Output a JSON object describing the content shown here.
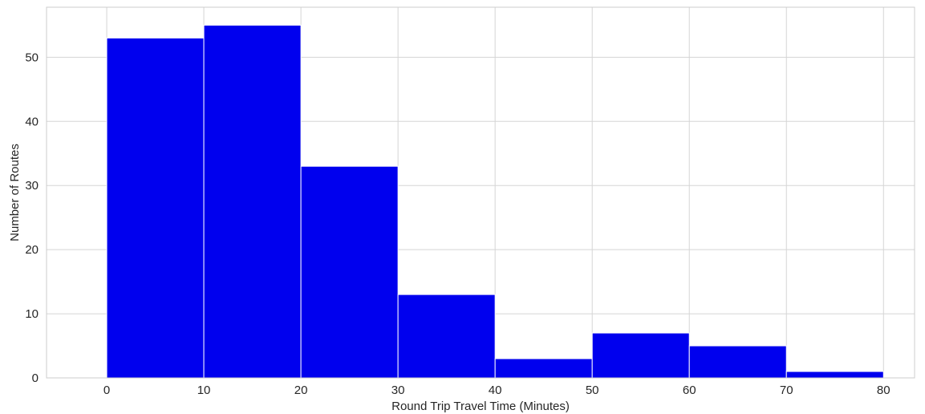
{
  "chart_data": {
    "type": "bar",
    "subtype": "histogram",
    "bin_edges": [
      0,
      10,
      20,
      30,
      40,
      50,
      60,
      70,
      80
    ],
    "values": [
      53,
      55,
      33,
      13,
      3,
      7,
      5,
      1
    ],
    "xlabel": "Round Trip Travel Time (Minutes)",
    "ylabel": "Number of Routes",
    "xlim": [
      -6.2,
      83.2
    ],
    "ylim": [
      0,
      57.8
    ],
    "x_ticks": [
      0,
      10,
      20,
      30,
      40,
      50,
      60,
      70,
      80
    ],
    "y_ticks": [
      0,
      10,
      20,
      30,
      40,
      50
    ],
    "grid": true,
    "bar_color": "#0000ee",
    "edge_color": "#ffffff",
    "grid_color": "#d5d5d5",
    "background": "#ffffff"
  }
}
